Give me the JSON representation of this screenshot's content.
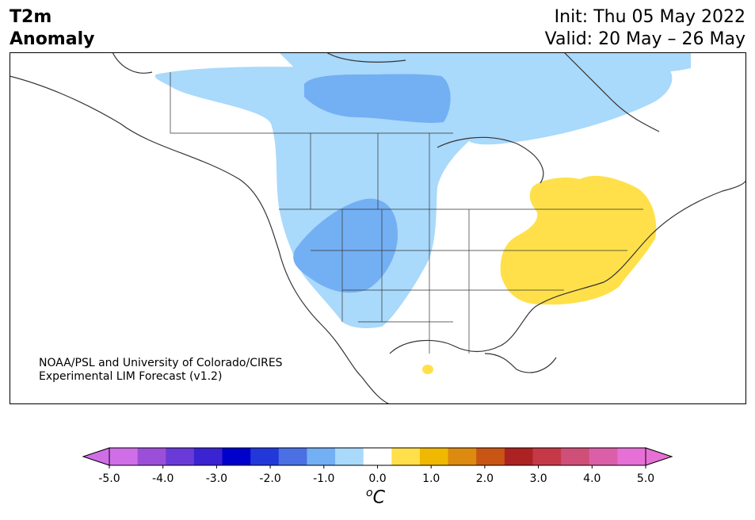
{
  "header": {
    "title_line1": "T2m",
    "title_line2": "Anomaly",
    "init": "Init: Thu 05 May 2022",
    "valid": "Valid: 20 May – 26 May"
  },
  "map": {
    "credit_line1": "NOAA/PSL and University of Colorado/CIRES",
    "credit_line2": "Experimental LIM Forecast (v1.2)",
    "colors": {
      "light_blue": "#a9d9fb",
      "medium_blue": "#73aff3",
      "yellow": "#ffe04a",
      "border": "#333333"
    }
  },
  "colorbar": {
    "unit_label": "C",
    "unit_sup": "o",
    "colors": [
      "#d06ee8",
      "#9b4fd8",
      "#6a3ad8",
      "#3a23d0",
      "#0000cc",
      "#2238d8",
      "#4a70e4",
      "#73aff3",
      "#a9d9fb",
      "#ffffff",
      "#ffe04a",
      "#f0b800",
      "#dd8a10",
      "#c85514",
      "#ac2222",
      "#c43848",
      "#cf4f78",
      "#da5fa8",
      "#e670d6"
    ],
    "min_color": "#d06ee8",
    "max_color": "#e670d6",
    "tick_labels": [
      "-5.0",
      "-4.0",
      "-3.0",
      "-2.0",
      "-1.0",
      "0.0",
      "1.0",
      "2.0",
      "3.0",
      "4.0",
      "5.0"
    ]
  }
}
